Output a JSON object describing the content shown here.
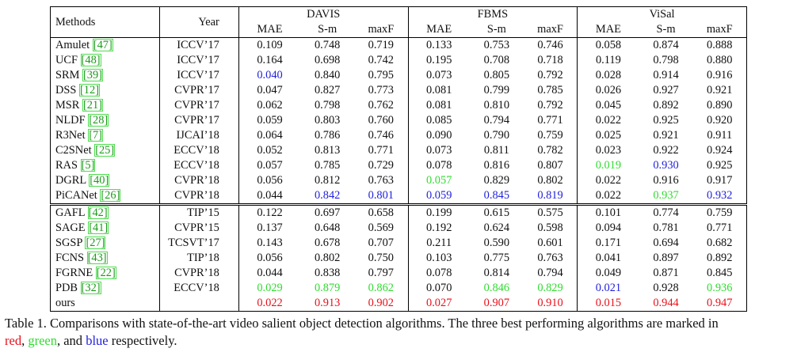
{
  "table": {
    "header": {
      "methods": "Methods",
      "year": "Year",
      "groups": [
        "DAVIS",
        "FBMS",
        "ViSal"
      ],
      "metrics": [
        "MAE",
        "S-m",
        "maxF"
      ]
    },
    "sections": [
      {
        "rows": [
          {
            "name": "Amulet",
            "cite": "[47]",
            "year": "ICCV’17",
            "values": [
              "0.109",
              "0.748",
              "0.719",
              "0.133",
              "0.753",
              "0.746",
              "0.058",
              "0.874",
              "0.888"
            ],
            "colors": [
              "",
              "",
              "",
              "",
              "",
              "",
              "",
              "",
              ""
            ]
          },
          {
            "name": "UCF",
            "cite": "[48]",
            "year": "ICCV’17",
            "values": [
              "0.164",
              "0.698",
              "0.742",
              "0.195",
              "0.708",
              "0.718",
              "0.119",
              "0.798",
              "0.880"
            ],
            "colors": [
              "",
              "",
              "",
              "",
              "",
              "",
              "",
              "",
              ""
            ]
          },
          {
            "name": "SRM",
            "cite": "[39]",
            "year": "ICCV’17",
            "values": [
              "0.040",
              "0.840",
              "0.795",
              "0.073",
              "0.805",
              "0.792",
              "0.028",
              "0.914",
              "0.916"
            ],
            "colors": [
              "blue",
              "",
              "",
              "",
              "",
              "",
              "",
              "",
              ""
            ]
          },
          {
            "name": "DSS",
            "cite": "[12]",
            "year": "CVPR’17",
            "values": [
              "0.047",
              "0.827",
              "0.773",
              "0.081",
              "0.799",
              "0.785",
              "0.026",
              "0.927",
              "0.921"
            ],
            "colors": [
              "",
              "",
              "",
              "",
              "",
              "",
              "",
              "",
              ""
            ]
          },
          {
            "name": "MSR",
            "cite": "[21]",
            "year": "CVPR’17",
            "values": [
              "0.062",
              "0.798",
              "0.762",
              "0.081",
              "0.810",
              "0.792",
              "0.045",
              "0.892",
              "0.890"
            ],
            "colors": [
              "",
              "",
              "",
              "",
              "",
              "",
              "",
              "",
              ""
            ]
          },
          {
            "name": "NLDF",
            "cite": "[28]",
            "year": "CVPR’17",
            "values": [
              "0.059",
              "0.803",
              "0.760",
              "0.085",
              "0.794",
              "0.771",
              "0.022",
              "0.925",
              "0.920"
            ],
            "colors": [
              "",
              "",
              "",
              "",
              "",
              "",
              "",
              "",
              ""
            ]
          },
          {
            "name": "R3Net",
            "cite": "[7]",
            "year": "IJCAI’18",
            "values": [
              "0.064",
              "0.786",
              "0.746",
              "0.090",
              "0.790",
              "0.759",
              "0.025",
              "0.921",
              "0.911"
            ],
            "colors": [
              "",
              "",
              "",
              "",
              "",
              "",
              "",
              "",
              ""
            ]
          },
          {
            "name": "C2SNet",
            "cite": "[25]",
            "year": "ECCV’18",
            "values": [
              "0.052",
              "0.813",
              "0.771",
              "0.073",
              "0.811",
              "0.782",
              "0.023",
              "0.922",
              "0.924"
            ],
            "colors": [
              "",
              "",
              "",
              "",
              "",
              "",
              "",
              "",
              ""
            ]
          },
          {
            "name": "RAS",
            "cite": "[5]",
            "year": "ECCV’18",
            "values": [
              "0.057",
              "0.785",
              "0.729",
              "0.078",
              "0.816",
              "0.807",
              "0.019",
              "0.930",
              "0.925"
            ],
            "colors": [
              "",
              "",
              "",
              "",
              "",
              "",
              "green",
              "blue",
              ""
            ]
          },
          {
            "name": "DGRL",
            "cite": "[40]",
            "year": "CVPR’18",
            "values": [
              "0.056",
              "0.812",
              "0.763",
              "0.057",
              "0.829",
              "0.802",
              "0.022",
              "0.916",
              "0.917"
            ],
            "colors": [
              "",
              "",
              "",
              "green",
              "",
              "",
              "",
              "",
              ""
            ]
          },
          {
            "name": "PiCANet",
            "cite": "[26]",
            "year": "CVPR’18",
            "values": [
              "0.044",
              "0.842",
              "0.801",
              "0.059",
              "0.845",
              "0.819",
              "0.022",
              "0.937",
              "0.932"
            ],
            "colors": [
              "",
              "blue",
              "blue",
              "blue",
              "blue",
              "blue",
              "",
              "green",
              "blue"
            ]
          }
        ]
      },
      {
        "rows": [
          {
            "name": "GAFL",
            "cite": "[42]",
            "year": "TIP’15",
            "values": [
              "0.122",
              "0.697",
              "0.658",
              "0.199",
              "0.615",
              "0.575",
              "0.101",
              "0.774",
              "0.759"
            ],
            "colors": [
              "",
              "",
              "",
              "",
              "",
              "",
              "",
              "",
              ""
            ]
          },
          {
            "name": "SAGE",
            "cite": "[41]",
            "year": "CVPR’15",
            "values": [
              "0.137",
              "0.648",
              "0.569",
              "0.192",
              "0.624",
              "0.598",
              "0.094",
              "0.781",
              "0.771"
            ],
            "colors": [
              "",
              "",
              "",
              "",
              "",
              "",
              "",
              "",
              ""
            ]
          },
          {
            "name": "SGSP",
            "cite": "[27]",
            "year": "TCSVT’17",
            "values": [
              "0.143",
              "0.678",
              "0.707",
              "0.211",
              "0.590",
              "0.601",
              "0.171",
              "0.694",
              "0.682"
            ],
            "colors": [
              "",
              "",
              "",
              "",
              "",
              "",
              "",
              "",
              ""
            ]
          },
          {
            "name": "FCNS",
            "cite": "[43]",
            "year": "TIP’18",
            "values": [
              "0.056",
              "0.802",
              "0.750",
              "0.103",
              "0.775",
              "0.763",
              "0.041",
              "0.897",
              "0.892"
            ],
            "colors": [
              "",
              "",
              "",
              "",
              "",
              "",
              "",
              "",
              ""
            ]
          },
          {
            "name": "FGRNE",
            "cite": "[22]",
            "year": "CVPR’18",
            "values": [
              "0.044",
              "0.838",
              "0.797",
              "0.078",
              "0.814",
              "0.794",
              "0.049",
              "0.871",
              "0.845"
            ],
            "colors": [
              "",
              "",
              "",
              "",
              "",
              "",
              "",
              "",
              ""
            ]
          },
          {
            "name": "PDB",
            "cite": "[32]",
            "year": "ECCV’18",
            "values": [
              "0.029",
              "0.879",
              "0.862",
              "0.070",
              "0.846",
              "0.829",
              "0.021",
              "0.928",
              "0.936"
            ],
            "colors": [
              "green",
              "green",
              "green",
              "",
              "green",
              "green",
              "blue",
              "",
              "green"
            ]
          },
          {
            "name": "ours",
            "cite": "",
            "year": "",
            "values": [
              "0.022",
              "0.913",
              "0.902",
              "0.027",
              "0.907",
              "0.910",
              "0.015",
              "0.944",
              "0.947"
            ],
            "colors": [
              "red",
              "red",
              "red",
              "red",
              "red",
              "red",
              "red",
              "red",
              "red"
            ]
          }
        ]
      }
    ]
  },
  "caption": {
    "main": "Table 1. Comparisons with state-of-the-art video salient object detection algorithms. The three best performing algorithms are marked in",
    "red_word": "red",
    "sep1": ", ",
    "green_word": "green",
    "sep2": ", and ",
    "blue_word": "blue",
    "end": " respectively."
  },
  "colors": {
    "red": "#e8101a",
    "green": "#2fdc2f",
    "blue": "#1f1fdc",
    "citation": "#1a9a1a",
    "citation_box": "#4ddc4d"
  }
}
